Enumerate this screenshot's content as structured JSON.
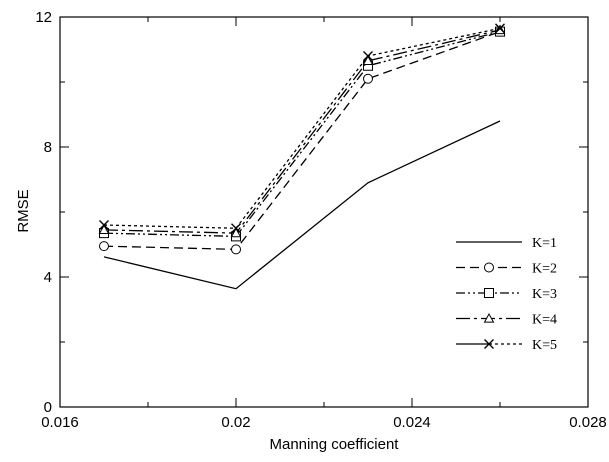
{
  "chart_data": {
    "type": "line",
    "title": "",
    "xlabel": "Manning coefficient",
    "ylabel": "RMSE",
    "xlim": [
      0.016,
      0.028
    ],
    "ylim": [
      0,
      12
    ],
    "x_ticks": [
      "0.016",
      "0.02",
      "0.024",
      "0.028"
    ],
    "y_ticks": [
      "0",
      "4",
      "8",
      "12"
    ],
    "x": [
      0.017,
      0.02,
      0.023,
      0.026
    ],
    "grid": false,
    "legend_position": "right",
    "series": [
      {
        "name": "K=1",
        "values": [
          4.62,
          3.64,
          6.9,
          8.8
        ],
        "marker": "none",
        "dash": "solid"
      },
      {
        "name": "K=2",
        "values": [
          4.95,
          4.85,
          10.1,
          11.55
        ],
        "marker": "circle",
        "dash": "dashed"
      },
      {
        "name": "K=3",
        "values": [
          5.35,
          5.25,
          10.5,
          11.55
        ],
        "marker": "square",
        "dash": "dashdotdot"
      },
      {
        "name": "K=4",
        "values": [
          5.45,
          5.35,
          10.65,
          11.6
        ],
        "marker": "triangle",
        "dash": "longdash"
      },
      {
        "name": "K=5",
        "values": [
          5.6,
          5.5,
          10.8,
          11.65
        ],
        "marker": "x",
        "dash": "solid-dashed"
      }
    ]
  }
}
